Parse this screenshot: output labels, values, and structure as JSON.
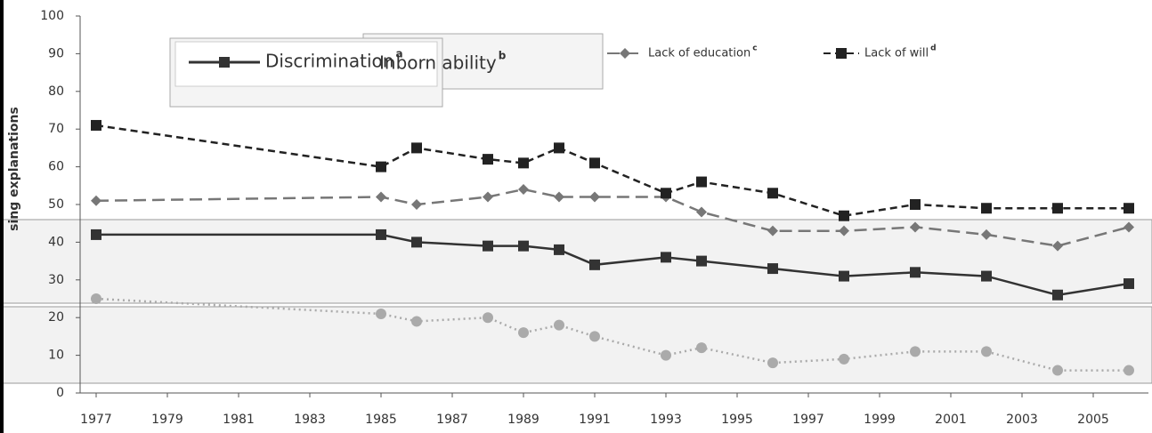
{
  "chart_data": {
    "type": "line",
    "ylabel": "sing explanations",
    "xlim": [
      1976.55,
      2006.55
    ],
    "xticks": [
      1977,
      1979,
      1981,
      1983,
      1985,
      1987,
      1989,
      1991,
      1993,
      1995,
      1997,
      1999,
      2001,
      2003,
      2005
    ],
    "ylim": [
      0,
      100
    ],
    "yticks": [
      0,
      10,
      20,
      30,
      40,
      50,
      60,
      70,
      80,
      90,
      100
    ],
    "x": [
      1977,
      1985,
      1986,
      1988,
      1989,
      1990,
      1991,
      1993,
      1994,
      1996,
      1998,
      2000,
      2002,
      2004,
      2006
    ],
    "series": [
      {
        "name": "Discrimination",
        "footnote": "a",
        "color": "#333333",
        "dash": "solid",
        "marker": "square",
        "values": [
          42,
          42,
          40,
          39,
          39,
          38,
          34,
          36,
          35,
          33,
          31,
          32,
          31,
          26,
          29
        ]
      },
      {
        "name": "Inborn ability",
        "footnote": "b",
        "color": "#aaaaaa",
        "dash": "dot",
        "marker": "circle",
        "values": [
          25,
          21,
          19,
          20,
          16,
          18,
          15,
          10,
          12,
          8,
          9,
          11,
          11,
          6,
          6
        ]
      },
      {
        "name": "Lack of education",
        "footnote": "c",
        "color": "#777777",
        "dash": "longdash",
        "marker": "diamond",
        "values": [
          51,
          52,
          50,
          52,
          54,
          52,
          52,
          52,
          48,
          43,
          43,
          44,
          42,
          39,
          44
        ]
      },
      {
        "name": "Lack of will",
        "footnote": "d",
        "color": "#222222",
        "dash": "dash",
        "marker": "square",
        "values": [
          71,
          60,
          65,
          62,
          61,
          65,
          61,
          53,
          56,
          53,
          47,
          50,
          49,
          49,
          49
        ]
      }
    ]
  }
}
